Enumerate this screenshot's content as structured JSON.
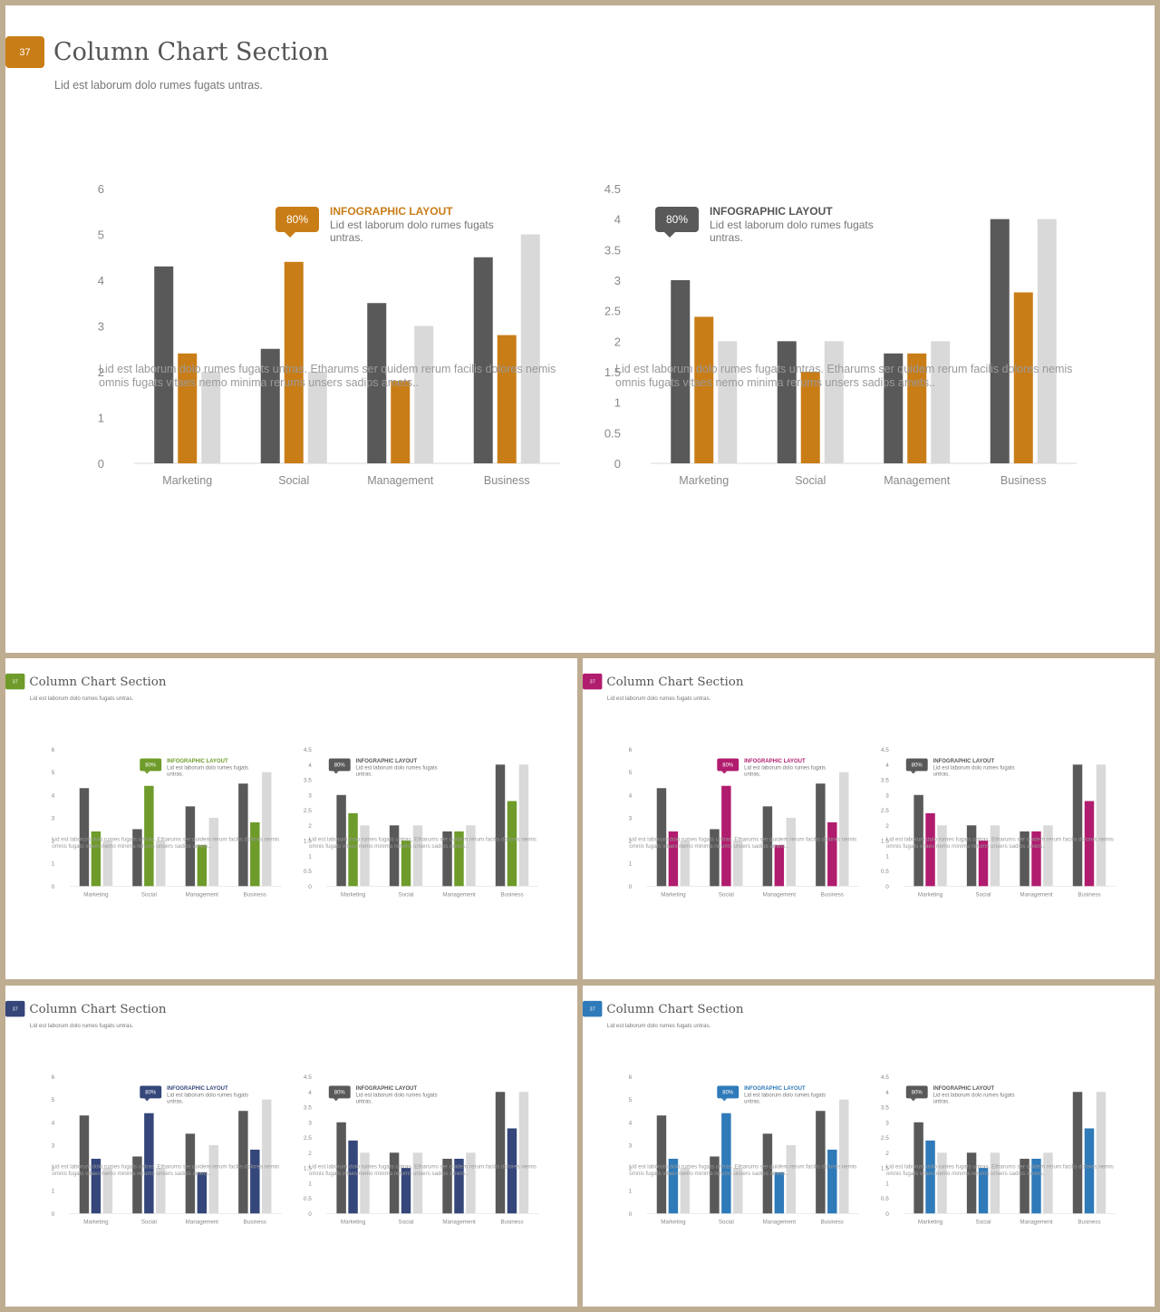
{
  "colors": {
    "frame": "#bfad92",
    "dark": "#595959",
    "light": "#d9d9d9",
    "callout_dark": "#595959",
    "axis_text": "#888888"
  },
  "slides": [
    {
      "number": "37",
      "title": "Column Chart Section",
      "subtitle": "Lid est laborum dolo rumes fugats untras.",
      "accent": "#c97d17",
      "callouts": [
        {
          "badge": "80%",
          "title": "INFOGRAPHIC LAYOUT",
          "text": "Lid est laborum dolo rumes fugats untras."
        },
        {
          "badge": "80%",
          "title": "INFOGRAPHIC LAYOUT",
          "text": "Lid est laborum dolo rumes fugats untras."
        }
      ],
      "descriptions": [
        "Lid est laborum dolo rumes fugats untras. Etharums ser quidem rerum facilis dolores nemis omnis fugats vitaes nemo minima rerums unsers sadips amets..",
        "Lid est laborum dolo rumes fugats untras. Etharums ser quidem rerum facilis dolores nemis omnis fugats vitaes nemo minima rerums unsers sadips amets.."
      ]
    },
    {
      "number": "37",
      "title": "Column Chart Section",
      "subtitle": "Lid est laborum dolo rumes fugats untras.",
      "accent": "#6e9b2a",
      "callouts": [
        {
          "badge": "80%",
          "title": "INFOGRAPHIC LAYOUT",
          "text": "Lid est laborum dolo rumes fugats untras."
        },
        {
          "badge": "80%",
          "title": "INFOGRAPHIC LAYOUT",
          "text": "Lid est laborum dolo rumes fugats untras."
        }
      ],
      "descriptions": [
        "Lid est laborum dolo rumes fugats untras. Etharums ser quidem rerum facilis dolores nemis omnis fugats vitaes nemo minima rerums unsers sadips amets..",
        "Lid est laborum dolo rumes fugats untras. Etharums ser quidem rerum facilis dolores nemis omnis fugats vitaes nemo minima rerums unsers sadips amets.."
      ]
    },
    {
      "number": "37",
      "title": "Column Chart Section",
      "subtitle": "Lid est laborum dolo rumes fugats untras.",
      "accent": "#b01c6e",
      "callouts": [
        {
          "badge": "80%",
          "title": "INFOGRAPHIC LAYOUT",
          "text": "Lid est laborum dolo rumes fugats untras."
        },
        {
          "badge": "80%",
          "title": "INFOGRAPHIC LAYOUT",
          "text": "Lid est laborum dolo rumes fugats untras."
        }
      ],
      "descriptions": [
        "Lid est laborum dolo rumes fugats untras. Etharums ser quidem rerum facilis dolores nemis omnis fugats vitaes nemo minima rerums unsers sadips amets..",
        "Lid est laborum dolo rumes fugats untras. Etharums ser quidem rerum facilis dolores nemis omnis fugats vitaes nemo minima rerums unsers sadips amets.."
      ]
    },
    {
      "number": "37",
      "title": "Column Chart Section",
      "subtitle": "Lid est laborum dolo rumes fugats untras.",
      "accent": "#34467a",
      "callouts": [
        {
          "badge": "80%",
          "title": "INFOGRAPHIC LAYOUT",
          "text": "Lid est laborum dolo rumes fugats untras."
        },
        {
          "badge": "80%",
          "title": "INFOGRAPHIC LAYOUT",
          "text": "Lid est laborum dolo rumes fugats untras."
        }
      ],
      "descriptions": [
        "Lid est laborum dolo rumes fugats untras. Etharums ser quidem rerum facilis dolores nemis omnis fugats vitaes nemo minima rerums unsers sadips amets..",
        "Lid est laborum dolo rumes fugats untras. Etharums ser quidem rerum facilis dolores nemis omnis fugats vitaes nemo minima rerums unsers sadips amets.."
      ]
    },
    {
      "number": "37",
      "title": "Column Chart Section",
      "subtitle": "Lid est laborum dolo rumes fugats untras.",
      "accent": "#2f7ab9",
      "callouts": [
        {
          "badge": "80%",
          "title": "INFOGRAPHIC LAYOUT",
          "text": "Lid est laborum dolo rumes fugats untras."
        },
        {
          "badge": "80%",
          "title": "INFOGRAPHIC LAYOUT",
          "text": "Lid est laborum dolo rumes fugats untras."
        }
      ],
      "descriptions": [
        "Lid est laborum dolo rumes fugats untras. Etharums ser quidem rerum facilis dolores nemis omnis fugats vitaes nemo minima rerums unsers sadips amets..",
        "Lid est laborum dolo rumes fugats untras. Etharums ser quidem rerum facilis dolores nemis omnis fugats vitaes nemo minima rerums unsers sadips amets.."
      ]
    }
  ],
  "chart_data": [
    {
      "type": "bar",
      "categories": [
        "Marketing",
        "Social",
        "Management",
        "Business"
      ],
      "yticks": [
        "0",
        "1",
        "2",
        "3",
        "4",
        "5",
        "6"
      ],
      "ylim": [
        0,
        6
      ],
      "series": [
        {
          "values": [
            4.3,
            2.5,
            3.5,
            4.5
          ]
        },
        {
          "values": [
            2.4,
            4.4,
            1.8,
            2.8
          ]
        },
        {
          "values": [
            2.0,
            2.0,
            3.0,
            5.0
          ]
        }
      ],
      "callout_style": "accent"
    },
    {
      "type": "bar",
      "categories": [
        "Marketing",
        "Social",
        "Management",
        "Business"
      ],
      "yticks": [
        "0",
        "0.5",
        "1",
        "1.5",
        "2",
        "2.5",
        "3",
        "3.5",
        "4",
        "4.5"
      ],
      "ylim": [
        0,
        4.5
      ],
      "series": [
        {
          "values": [
            3.0,
            2.0,
            1.8,
            4.0
          ]
        },
        {
          "values": [
            2.4,
            1.5,
            1.8,
            2.8
          ]
        },
        {
          "values": [
            2.0,
            2.0,
            2.0,
            4.0
          ]
        }
      ],
      "callout_style": "dark"
    }
  ]
}
